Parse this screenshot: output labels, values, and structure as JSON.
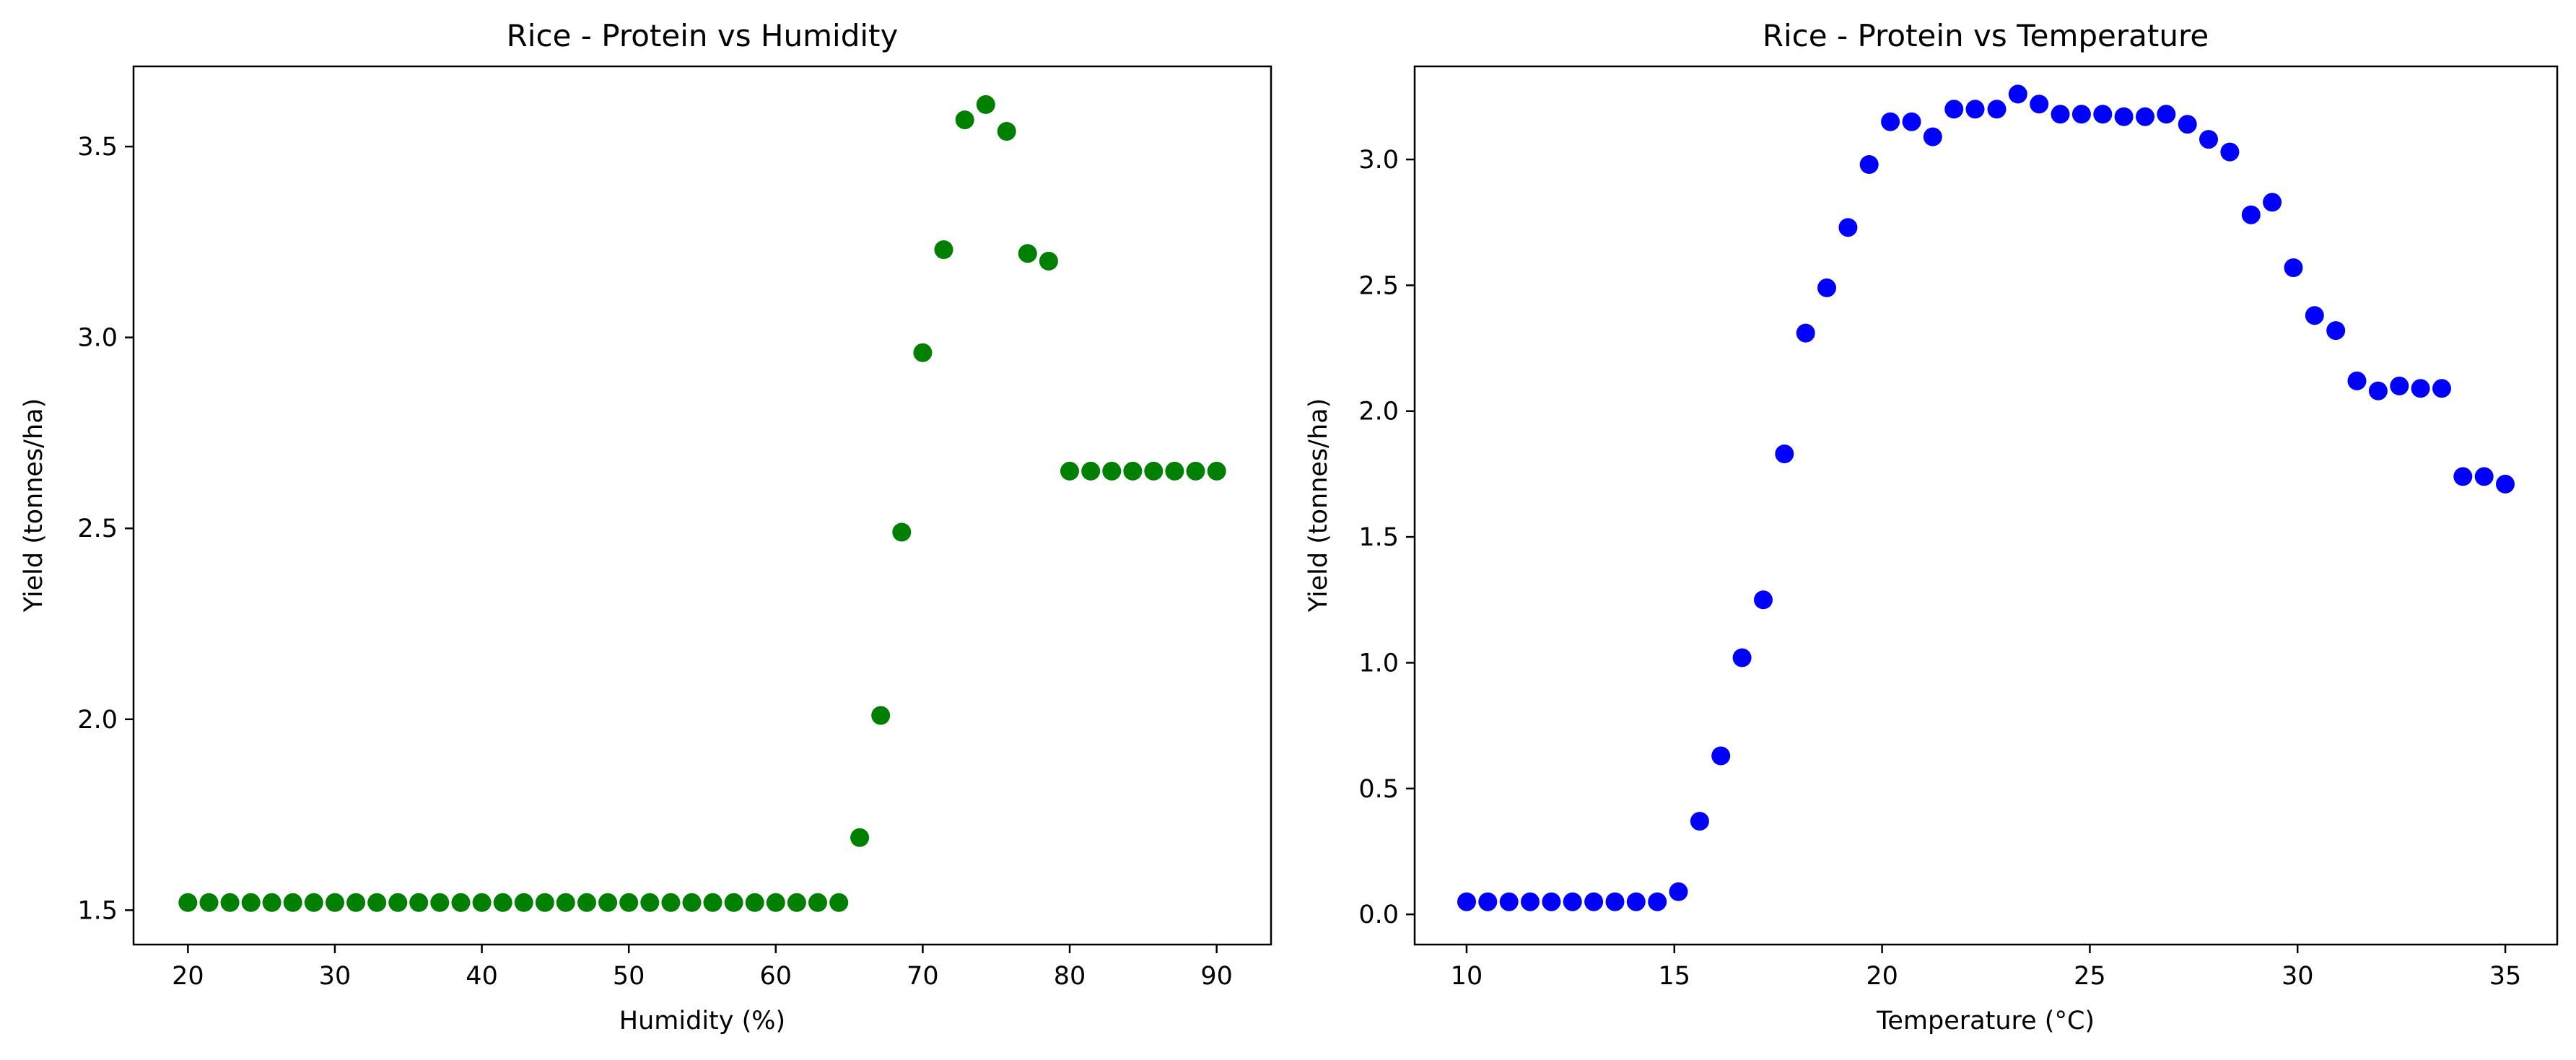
{
  "colors": {
    "humidity_marker": "#008000",
    "temperature_marker": "#0000ff",
    "background": "#ffffff"
  },
  "chart_data": [
    {
      "type": "scatter",
      "title": "Rice - Protein vs Humidity",
      "xlabel": "Humidity (%)",
      "ylabel": "Yield (tonnes/ha)",
      "xlim": [
        16.3,
        93.7
      ],
      "ylim": [
        1.41,
        3.71
      ],
      "xticks": [
        20,
        30,
        40,
        50,
        60,
        70,
        80,
        90
      ],
      "yticks": [
        1.5,
        2.0,
        2.5,
        3.0,
        3.5
      ],
      "xtick_labels": [
        "20",
        "30",
        "40",
        "50",
        "60",
        "70",
        "80",
        "90"
      ],
      "ytick_labels": [
        "1.5",
        "2.0",
        "2.5",
        "3.0",
        "3.5"
      ],
      "grid": false,
      "series": [
        {
          "color": "#008000",
          "x": [
            20.0,
            21.43,
            22.86,
            24.29,
            25.71,
            27.14,
            28.57,
            30.0,
            31.43,
            32.86,
            34.29,
            35.71,
            37.14,
            38.57,
            40.0,
            41.43,
            42.86,
            44.29,
            45.71,
            47.14,
            48.57,
            50.0,
            51.43,
            52.86,
            54.29,
            55.71,
            57.14,
            58.57,
            60.0,
            61.43,
            62.86,
            64.29,
            65.71,
            67.14,
            68.57,
            70.0,
            71.43,
            72.86,
            74.29,
            75.71,
            77.14,
            78.57,
            80.0,
            81.43,
            82.86,
            84.29,
            85.71,
            87.14,
            88.57,
            90.0
          ],
          "y": [
            1.52,
            1.52,
            1.52,
            1.52,
            1.52,
            1.52,
            1.52,
            1.52,
            1.52,
            1.52,
            1.52,
            1.52,
            1.52,
            1.52,
            1.52,
            1.52,
            1.52,
            1.52,
            1.52,
            1.52,
            1.52,
            1.52,
            1.52,
            1.52,
            1.52,
            1.52,
            1.52,
            1.52,
            1.52,
            1.52,
            1.52,
            1.52,
            1.69,
            2.01,
            2.49,
            2.96,
            3.23,
            3.57,
            3.61,
            3.54,
            3.22,
            3.2,
            2.65,
            2.65,
            2.65,
            2.65,
            2.65,
            2.65,
            2.65,
            2.65
          ]
        }
      ]
    },
    {
      "type": "scatter",
      "title": "Rice - Protein vs Temperature",
      "xlabel": "Temperature (°C)",
      "ylabel": "Yield (tonnes/ha)",
      "xlim": [
        8.75,
        36.25
      ],
      "ylim": [
        -0.12,
        3.37
      ],
      "xticks": [
        10,
        15,
        20,
        25,
        30,
        35
      ],
      "yticks": [
        0.0,
        0.5,
        1.0,
        1.5,
        2.0,
        2.5,
        3.0
      ],
      "xtick_labels": [
        "10",
        "15",
        "20",
        "25",
        "30",
        "35"
      ],
      "ytick_labels": [
        "0.0",
        "0.5",
        "1.0",
        "1.5",
        "2.0",
        "2.5",
        "3.0"
      ],
      "grid": false,
      "series": [
        {
          "color": "#0000ff",
          "x": [
            10.0,
            10.51,
            11.02,
            11.53,
            12.04,
            12.55,
            13.06,
            13.57,
            14.08,
            14.59,
            15.1,
            15.61,
            16.12,
            16.63,
            17.14,
            17.65,
            18.16,
            18.67,
            19.18,
            19.69,
            20.2,
            20.71,
            21.22,
            21.73,
            22.24,
            22.76,
            23.27,
            23.78,
            24.29,
            24.8,
            25.31,
            25.82,
            26.33,
            26.84,
            27.35,
            27.86,
            28.37,
            28.88,
            29.39,
            29.9,
            30.41,
            30.92,
            31.43,
            31.94,
            32.45,
            32.96,
            33.47,
            33.98,
            34.49,
            35.0
          ],
          "y": [
            0.05,
            0.05,
            0.05,
            0.05,
            0.05,
            0.05,
            0.05,
            0.05,
            0.05,
            0.05,
            0.09,
            0.37,
            0.63,
            1.02,
            1.25,
            1.83,
            2.31,
            2.49,
            2.73,
            2.98,
            3.15,
            3.15,
            3.09,
            3.2,
            3.2,
            3.2,
            3.26,
            3.22,
            3.18,
            3.18,
            3.18,
            3.17,
            3.17,
            3.18,
            3.14,
            3.08,
            3.03,
            2.78,
            2.83,
            2.57,
            2.38,
            2.32,
            2.12,
            2.08,
            2.1,
            2.09,
            2.09,
            1.74,
            1.74,
            1.71
          ]
        }
      ]
    }
  ]
}
